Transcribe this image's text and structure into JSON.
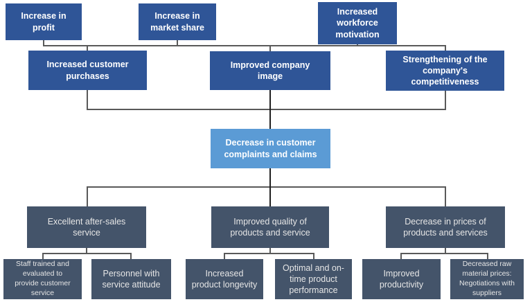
{
  "colors": {
    "primary_blue": "#2F5597",
    "light_blue": "#5B9BD5",
    "slate": "#44546A",
    "connector": "#595959",
    "connector_dark": "#1F1F1F",
    "text_white": "#FFFFFF",
    "text_slate": "#E6E6E6"
  },
  "nodes": {
    "profit": {
      "label": "Increase in\nprofit"
    },
    "market_share": {
      "label": "Increase in\nmarket share"
    },
    "workforce": {
      "label": "Increased\nworkforce\nmotivation"
    },
    "purchases": {
      "label": "Increased customer\npurchases"
    },
    "company_image": {
      "label": "Improved company\nimage"
    },
    "competitiveness": {
      "label": "Strengthening of the\ncompany's\ncompetitiveness"
    },
    "complaints": {
      "label": "Decrease in customer\ncomplaints and claims"
    },
    "after_sales": {
      "label": "Excellent after-sales\nservice"
    },
    "quality": {
      "label": "Improved quality of\nproducts and service"
    },
    "prices": {
      "label": "Decrease in prices of\nproducts and services"
    },
    "staff_trained": {
      "label": "Staff trained and\nevaluated to\nprovide customer\nservice"
    },
    "personnel": {
      "label": "Personnel with\nservice attitude"
    },
    "longevity": {
      "label": "Increased\nproduct longevity"
    },
    "on_time": {
      "label": "Optimal and on-\ntime product\nperformance"
    },
    "productivity": {
      "label": "Improved\nproductivity"
    },
    "raw_material": {
      "label": "Decreased raw\nmaterial prices:\nNegotiations with\nsuppliers"
    }
  }
}
